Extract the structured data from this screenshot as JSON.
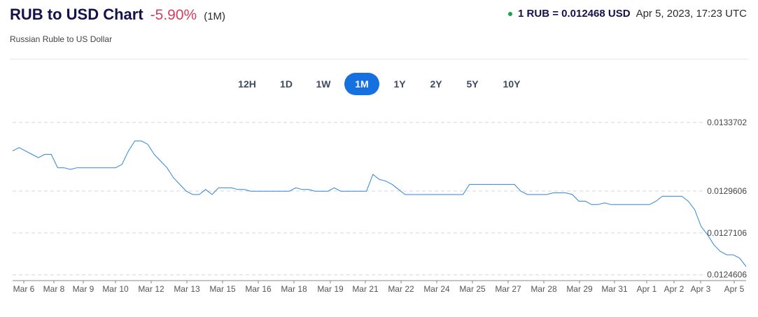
{
  "header": {
    "title": "RUB to USD Chart",
    "change": "-5.90%",
    "period": "(1M)",
    "subtitle": "Russian Ruble to US Dollar",
    "rate": "1 RUB = 0.012468 USD",
    "timestamp": "Apr 5, 2023, 17:23 UTC",
    "status_dot_color": "#1fa14a"
  },
  "tabs": [
    {
      "label": "12H",
      "active": false
    },
    {
      "label": "1D",
      "active": false
    },
    {
      "label": "1W",
      "active": false
    },
    {
      "label": "1M",
      "active": true
    },
    {
      "label": "1Y",
      "active": false
    },
    {
      "label": "2Y",
      "active": false
    },
    {
      "label": "5Y",
      "active": false
    },
    {
      "label": "10Y",
      "active": false
    }
  ],
  "colors": {
    "accent": "#1670e0",
    "line": "#2f86d9",
    "negative": "#d0415f"
  },
  "chart_data": {
    "type": "line",
    "title": "",
    "xlabel": "",
    "ylabel": "",
    "ylim": [
      0.0124,
      0.01345
    ],
    "y_ticks": [
      {
        "value": 0.0133702,
        "label": "0.0133702"
      },
      {
        "value": 0.0129606,
        "label": "0.0129606"
      },
      {
        "value": 0.0127106,
        "label": "0.0127106"
      },
      {
        "value": 0.0124606,
        "label": "0.0124606"
      }
    ],
    "grid": true,
    "x_tick_labels": [
      "Mar 6",
      "Mar 8",
      "Mar 9",
      "Mar 10",
      "Mar 12",
      "Mar 13",
      "Mar 15",
      "Mar 16",
      "Mar 18",
      "Mar 19",
      "Mar 21",
      "Mar 22",
      "Mar 24",
      "Mar 25",
      "Mar 27",
      "Mar 28",
      "Mar 29",
      "Mar 31",
      "Apr 1",
      "Apr 2",
      "Apr 3",
      "Apr 5"
    ],
    "series": [
      {
        "values": [
          0.0132,
          0.01322,
          0.0132,
          0.01318,
          0.01316,
          0.01318,
          0.01318,
          0.0131,
          0.0131,
          0.01309,
          0.0131,
          0.0131,
          0.0131,
          0.0131,
          0.0131,
          0.0131,
          0.0131,
          0.01312,
          0.0132,
          0.01326,
          0.01326,
          0.01324,
          0.01318,
          0.01314,
          0.0131,
          0.01304,
          0.013,
          0.01296,
          0.01294,
          0.01294,
          0.01297,
          0.01294,
          0.01298,
          0.01298,
          0.01298,
          0.01297,
          0.01297,
          0.01296,
          0.01296,
          0.01296,
          0.01296,
          0.01296,
          0.01296,
          0.01296,
          0.01298,
          0.01297,
          0.01297,
          0.01296,
          0.01296,
          0.01296,
          0.01298,
          0.01296,
          0.01296,
          0.01296,
          0.01296,
          0.01296,
          0.01306,
          0.01303,
          0.01302,
          0.013,
          0.01297,
          0.01294,
          0.01294,
          0.01294,
          0.01294,
          0.01294,
          0.01294,
          0.01294,
          0.01294,
          0.01294,
          0.01294,
          0.013,
          0.013,
          0.013,
          0.013,
          0.013,
          0.013,
          0.013,
          0.013,
          0.01296,
          0.01294,
          0.01294,
          0.01294,
          0.01294,
          0.01295,
          0.01295,
          0.01295,
          0.01294,
          0.0129,
          0.0129,
          0.01288,
          0.01288,
          0.01289,
          0.01288,
          0.01288,
          0.01288,
          0.01288,
          0.01288,
          0.01288,
          0.01288,
          0.0129,
          0.01293,
          0.01293,
          0.01293,
          0.01293,
          0.0129,
          0.01285,
          0.01275,
          0.0127,
          0.01264,
          0.0126,
          0.01258,
          0.01258,
          0.01256,
          0.01251
        ]
      }
    ]
  }
}
